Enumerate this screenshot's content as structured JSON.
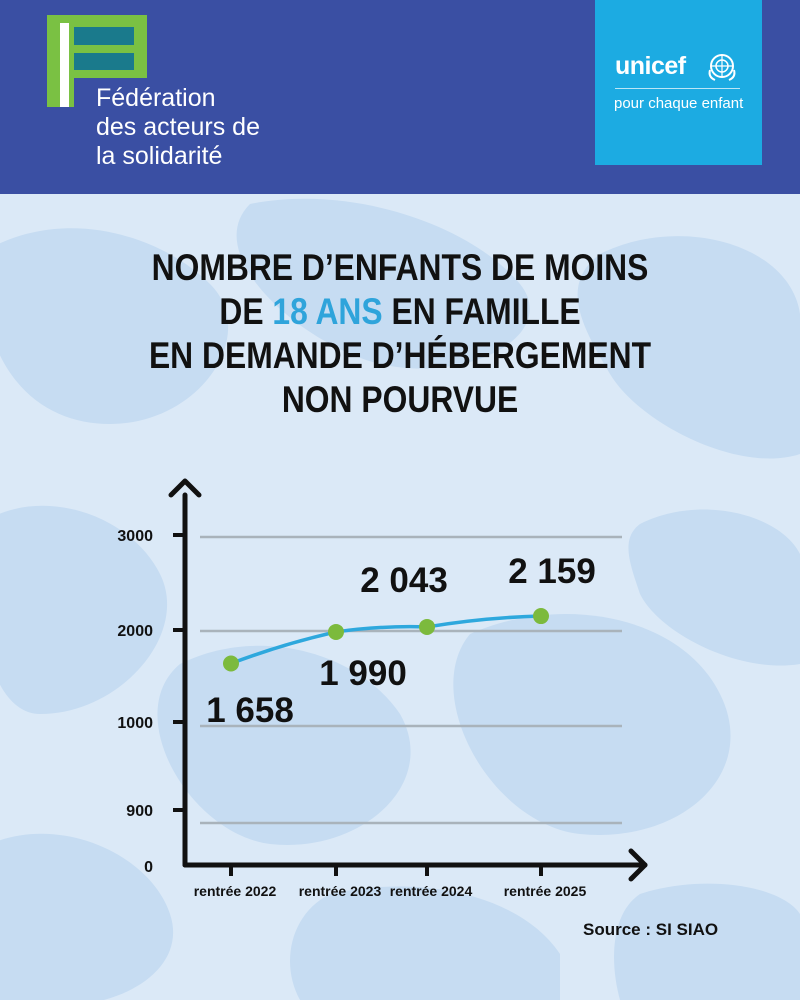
{
  "header": {
    "org_name_lines": [
      "Fédération",
      "des acteurs de",
      "la solidarité"
    ],
    "partner_name": "unicef",
    "partner_tagline": "pour chaque enfant",
    "colors": {
      "header_bg": "#3a4fa3",
      "fas_green": "#7ac143",
      "fas_teal": "#1a7a8c",
      "unicef_blue": "#1cabe2"
    }
  },
  "title": {
    "line1": "NOMBRE D’ENFANTS DE MOINS",
    "line2_prefix": "DE ",
    "line2_highlight": "18 ANS",
    "line2_suffix": " EN FAMILLE",
    "line3": "EN DEMANDE D’HÉBERGEMENT",
    "line4": "NON POURVUE"
  },
  "chart_data": {
    "type": "line",
    "categories": [
      "rentrée 2022",
      "rentrée 2023",
      "rentrée 2024",
      "rentrée 2025"
    ],
    "values": [
      1658,
      1990,
      2043,
      2159
    ],
    "data_labels": [
      "1 658",
      "1 990",
      "2 043",
      "2 159"
    ],
    "y_tick_labels": [
      "3000",
      "2000",
      "1000",
      "900",
      "0"
    ],
    "grid": true,
    "colors": {
      "line": "#2ea8dd",
      "marker": "#7cba3d",
      "axis": "#111111",
      "grid": "#a9b3bb"
    }
  },
  "source": "Source : SI SIAO"
}
